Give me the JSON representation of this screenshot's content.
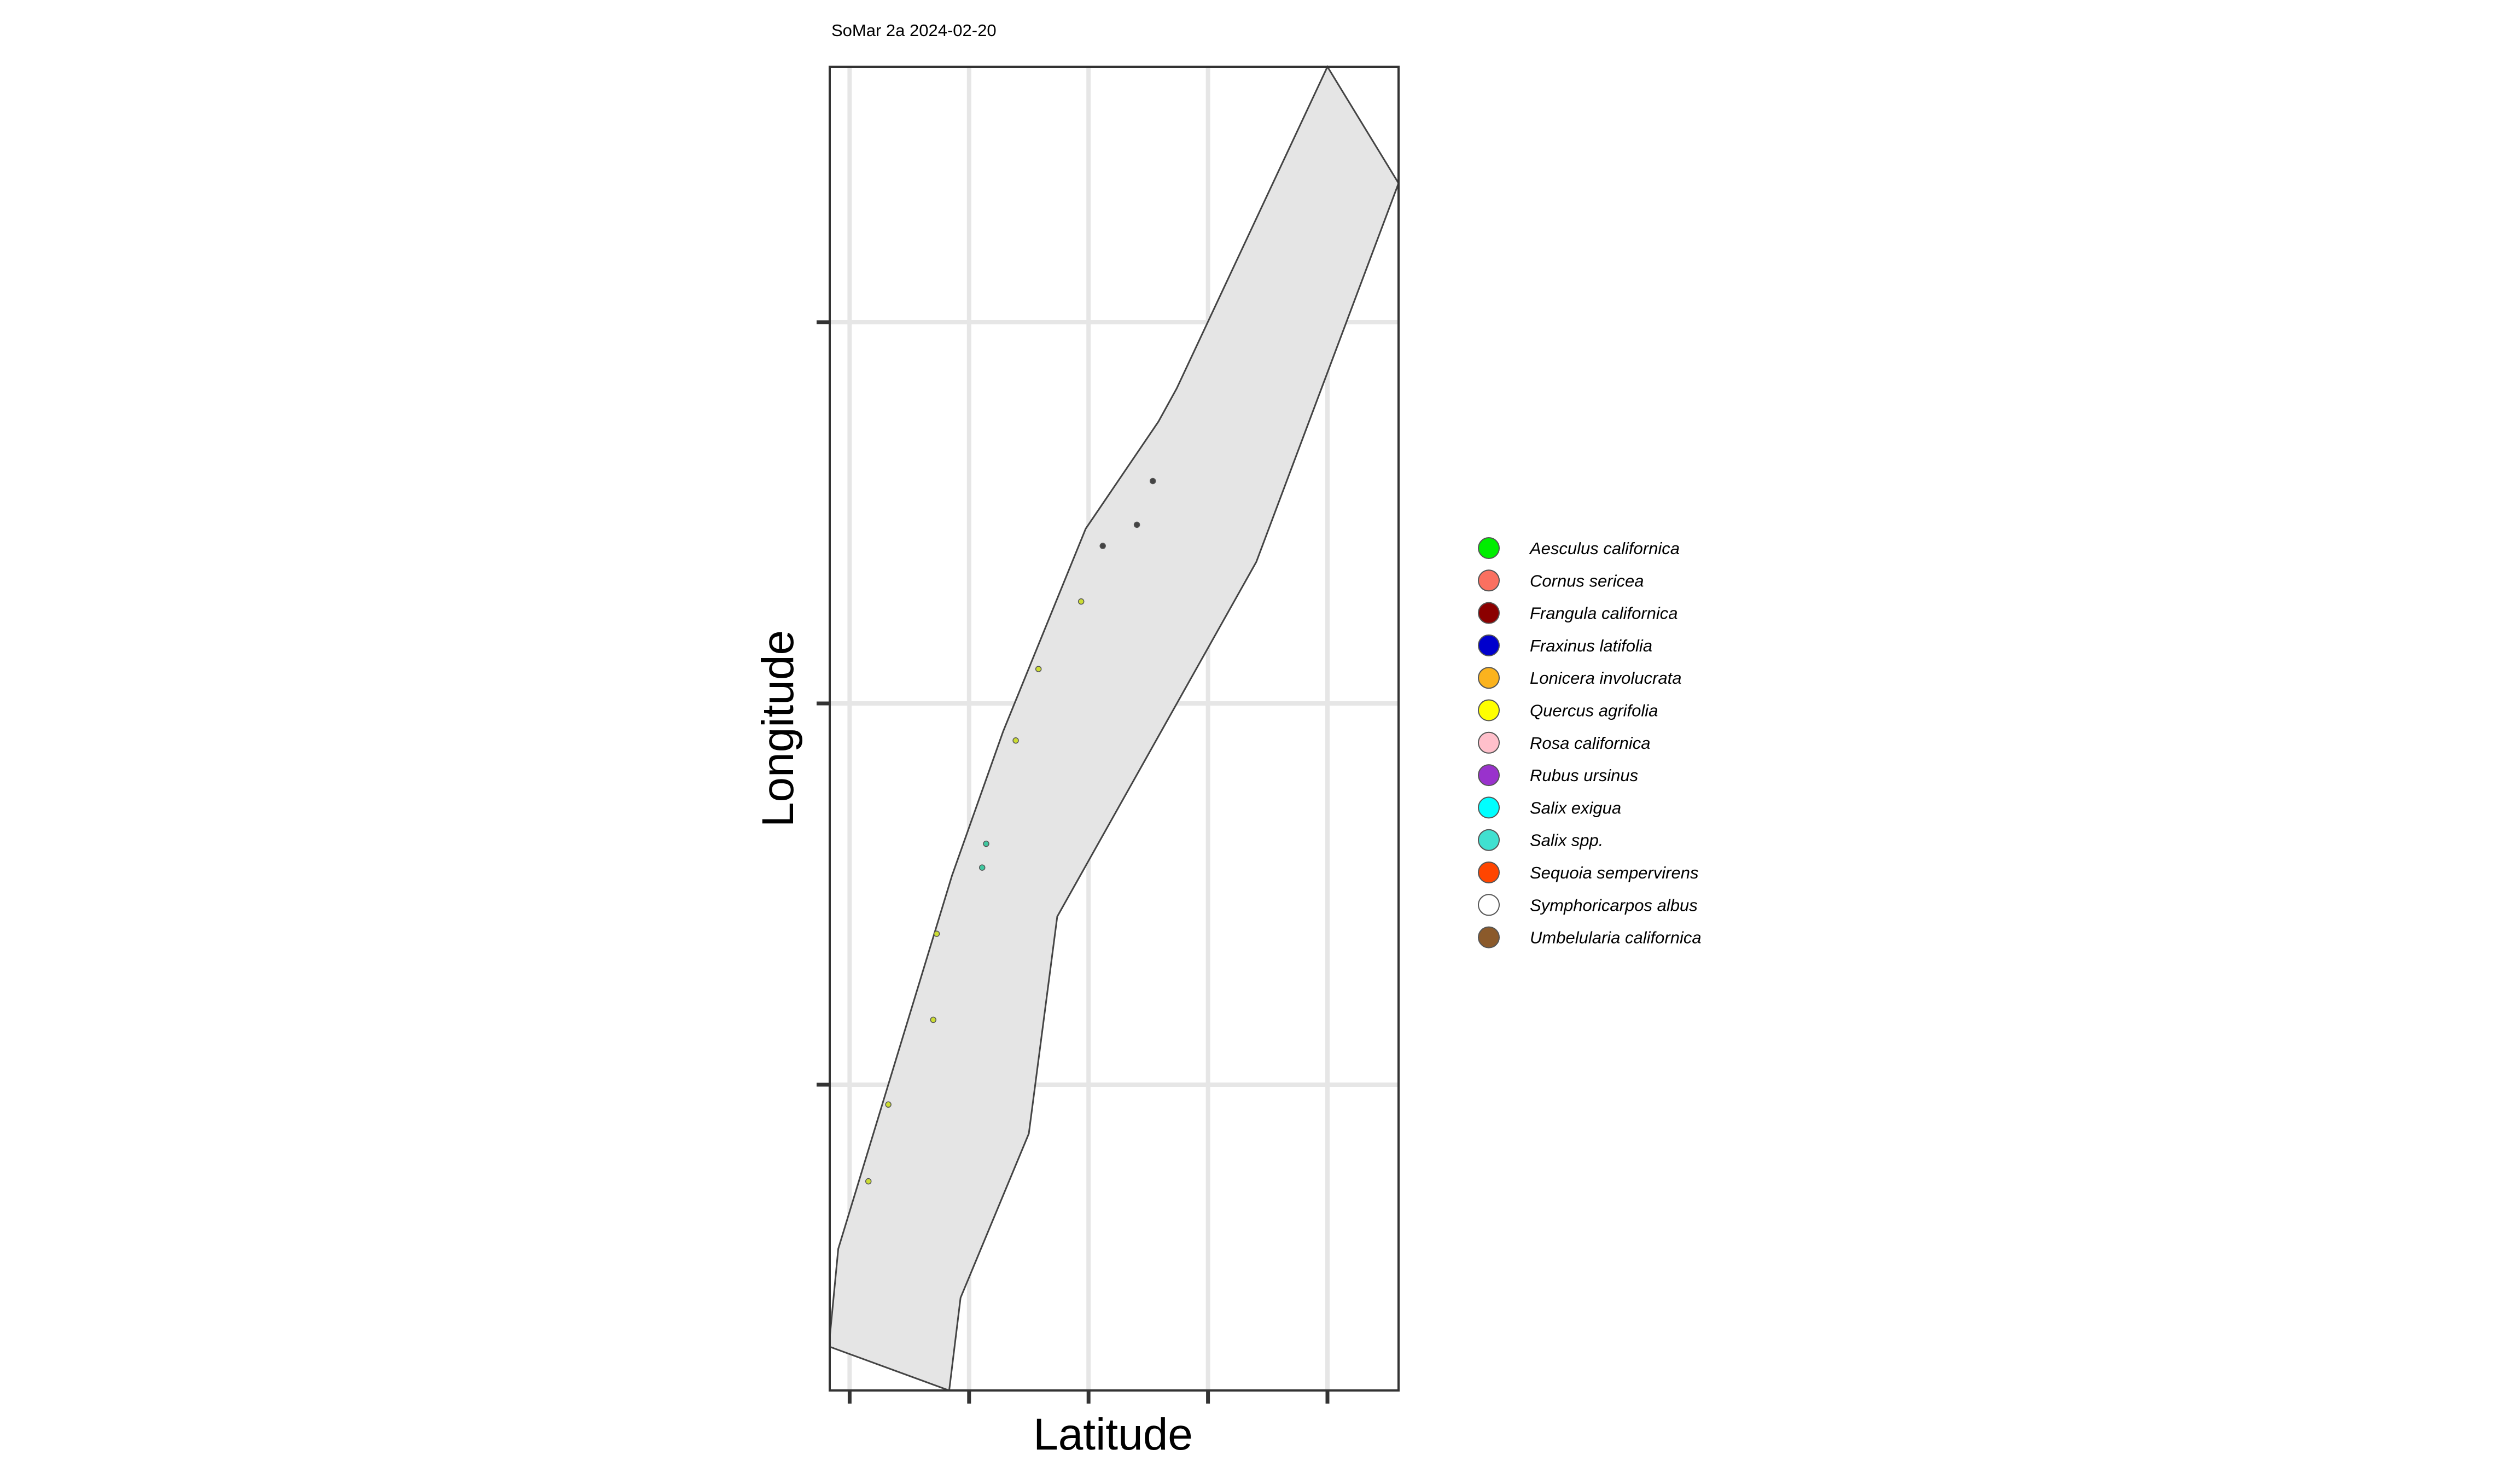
{
  "chart_data": {
    "type": "scatter",
    "title": "SoMar 2a 2024-02-20",
    "xlabel": "Latitude",
    "ylabel": "Longitude",
    "xlim": [
      0,
      1
    ],
    "ylim": [
      0,
      1
    ],
    "grid": true,
    "legend_position": "right",
    "x_gridlines": [
      0.035,
      0.245,
      0.455,
      0.665,
      0.875
    ],
    "y_gridlines": [
      0.231,
      0.519,
      0.807
    ],
    "polygon": [
      [
        0.875,
        1.0
      ],
      [
        1.0,
        0.912
      ],
      [
        0.75,
        0.626
      ],
      [
        0.4,
        0.358
      ],
      [
        0.35,
        0.194
      ],
      [
        0.23,
        0.07
      ],
      [
        0.21,
        0.0
      ],
      [
        0.0,
        0.033
      ],
      [
        0.0,
        0.04
      ],
      [
        0.015,
        0.107
      ],
      [
        0.215,
        0.389
      ],
      [
        0.305,
        0.498
      ],
      [
        0.45,
        0.651
      ],
      [
        0.578,
        0.732
      ],
      [
        0.61,
        0.757
      ],
      [
        0.875,
        1.0
      ]
    ],
    "series": [
      {
        "name": "Quercus agrifolia",
        "color": "#ccdd33",
        "x": [
          0.068,
          0.103,
          0.182,
          0.188,
          0.327,
          0.367,
          0.442
        ],
        "y": [
          0.158,
          0.216,
          0.28,
          0.345,
          0.491,
          0.545,
          0.596
        ]
      },
      {
        "name": "Salix spp.",
        "color": "#40c8a0",
        "x": [
          0.268,
          0.275
        ],
        "y": [
          0.395,
          0.413
        ]
      },
      {
        "name": "Frangula californica",
        "color": "#444444",
        "x": [
          0.48,
          0.54,
          0.568
        ],
        "y": [
          0.638,
          0.654,
          0.687
        ]
      }
    ],
    "legend": [
      {
        "label": "Aesculus californica",
        "color": "#00ee00"
      },
      {
        "label": "Cornus sericea",
        "color": "#fa7060"
      },
      {
        "label": "Frangula californica",
        "color": "#8b0000"
      },
      {
        "label": "Fraxinus latifolia",
        "color": "#0000cd"
      },
      {
        "label": "Lonicera involucrata",
        "color": "#fbb31e"
      },
      {
        "label": "Quercus agrifolia",
        "color": "#ffff00"
      },
      {
        "label": "Rosa californica",
        "color": "#ffc0cb"
      },
      {
        "label": "Rubus ursinus",
        "color": "#9932cc"
      },
      {
        "label": "Salix exigua",
        "color": "#00ffff"
      },
      {
        "label": "Salix spp.",
        "color": "#40e0d0"
      },
      {
        "label": "Sequoia sempervirens",
        "color": "#ff4500"
      },
      {
        "label": "Symphoricarpos albus",
        "color": "#ffffff"
      },
      {
        "label": "Umbelularia californica",
        "color": "#8b5a2b"
      }
    ],
    "colors": {
      "grid": "#e6e6e6",
      "polygon_fill": "#e5e5e5",
      "polygon_stroke": "#444444",
      "panel_border": "#333333",
      "legend_stroke": "#555555"
    }
  }
}
